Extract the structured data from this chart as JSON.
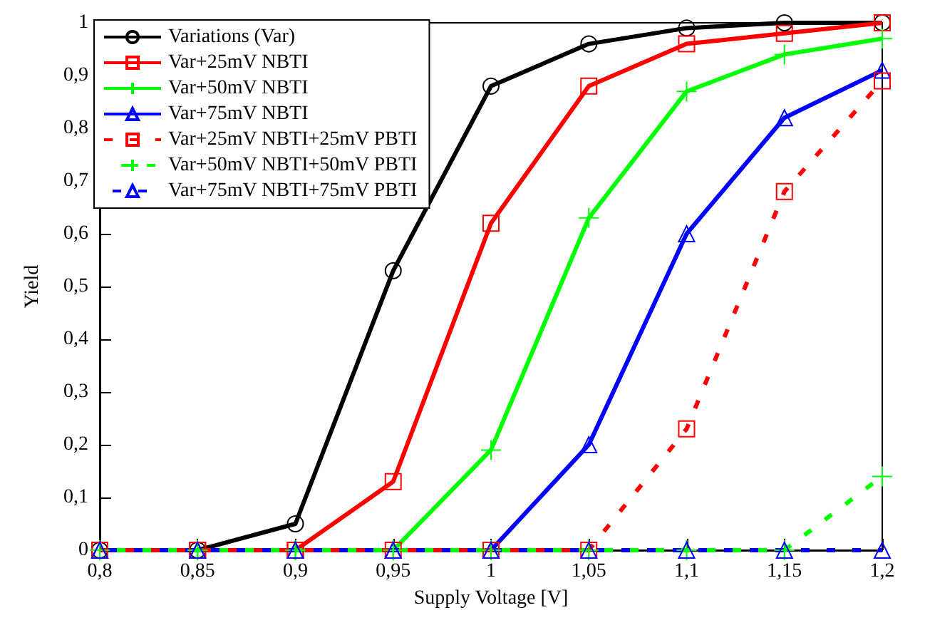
{
  "chart_data": {
    "type": "line",
    "xlabel": "Supply Voltage [V]",
    "ylabel": "Yield",
    "x": [
      0.8,
      0.85,
      0.9,
      0.95,
      1.0,
      1.05,
      1.1,
      1.15,
      1.2
    ],
    "series": [
      {
        "name": "Variations (Var)",
        "color": "#000000",
        "marker": "circle",
        "line_style": "solid",
        "values": [
          0,
          0,
          0.05,
          0.53,
          0.88,
          0.96,
          0.99,
          1.0,
          1.0
        ]
      },
      {
        "name": "Var+25mV NBTI",
        "color": "#ff0000",
        "marker": "square",
        "line_style": "solid",
        "values": [
          0,
          0,
          0,
          0.13,
          0.62,
          0.88,
          0.96,
          0.98,
          1.0
        ]
      },
      {
        "name": "Var+50mV NBTI",
        "color": "#00ff00",
        "marker": "cross",
        "line_style": "solid",
        "values": [
          0,
          0,
          0,
          0,
          0.19,
          0.63,
          0.87,
          0.94,
          0.97
        ]
      },
      {
        "name": "Var+75mV NBTI",
        "color": "#0000ff",
        "marker": "triangle",
        "line_style": "solid",
        "values": [
          0,
          0,
          0,
          0,
          0,
          0.2,
          0.6,
          0.82,
          0.91
        ]
      },
      {
        "name": "Var+25mV NBTI+25mV PBTI",
        "color": "#ff0000",
        "marker": "square",
        "line_style": "dashed",
        "values": [
          0,
          0,
          0,
          0,
          0,
          0,
          0.23,
          0.68,
          0.89
        ]
      },
      {
        "name": "Var+50mV NBTI+50mV PBTI",
        "color": "#00ff00",
        "marker": "cross",
        "line_style": "dashed",
        "values": [
          0,
          0,
          0,
          0,
          0,
          0,
          0,
          0,
          0.14
        ]
      },
      {
        "name": "Var+75mV NBTI+75mV PBTI",
        "color": "#0000ff",
        "marker": "triangle",
        "line_style": "dashed",
        "values": [
          0,
          0,
          0,
          0,
          0,
          0,
          0,
          0,
          0
        ]
      }
    ],
    "xlim": [
      0.8,
      1.2
    ],
    "xticks": [
      {
        "value": 0.8,
        "label": "0,8"
      },
      {
        "value": 0.85,
        "label": "0,85"
      },
      {
        "value": 0.9,
        "label": "0,9"
      },
      {
        "value": 0.95,
        "label": "0,95"
      },
      {
        "value": 1,
        "label": "1"
      },
      {
        "value": 1.05,
        "label": "1,05"
      },
      {
        "value": 1.1,
        "label": "1,1"
      },
      {
        "value": 1.15,
        "label": "1,15"
      },
      {
        "value": 1.2,
        "label": "1,2"
      }
    ],
    "ylim": [
      0,
      1
    ],
    "yticks": [
      0,
      {
        "value": 0.1,
        "label": "0,1"
      },
      {
        "value": 0.2,
        "label": "0,2"
      },
      {
        "value": 0.3,
        "label": "0,3"
      },
      {
        "value": 0.4,
        "label": "0,4"
      },
      {
        "value": 0.5,
        "label": "0,5"
      },
      {
        "value": 0.6,
        "label": "0,6"
      },
      {
        "value": 0.7,
        "label": "0,7"
      },
      {
        "value": 0.8,
        "label": "0,8"
      },
      {
        "value": 0.9,
        "label": "0,9"
      },
      1
    ],
    "grid": false,
    "legend": "top left"
  }
}
